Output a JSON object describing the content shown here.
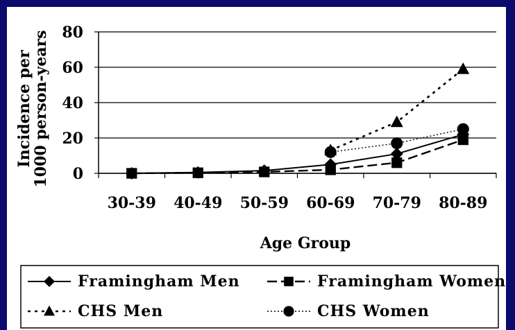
{
  "chart_data": {
    "type": "line",
    "categories": [
      "30-39",
      "40-49",
      "50-59",
      "60-69",
      "70-79",
      "80-89"
    ],
    "xlabel": "Age Group",
    "ylabel_lines": [
      "Incidence per",
      "1000 person-years"
    ],
    "ylim": [
      0,
      80
    ],
    "yticks": [
      0,
      20,
      40,
      60,
      80
    ],
    "grid": "horizontal",
    "legend_placement": "bottom",
    "series": [
      {
        "name": "Framingham Men",
        "values": [
          0,
          0.5,
          1.5,
          5,
          11,
          22
        ],
        "marker": "diamond",
        "dash": "solid",
        "color": "#000000"
      },
      {
        "name": "Framingham Women",
        "values": [
          0,
          0.3,
          0.8,
          2,
          6,
          19
        ],
        "marker": "square",
        "dash": "long-dash",
        "color": "#000000"
      },
      {
        "name": "CHS Men",
        "values": [
          null,
          null,
          null,
          13,
          29,
          59
        ],
        "marker": "triangle",
        "dash": "dotted",
        "color": "#000000"
      },
      {
        "name": "CHS Women",
        "values": [
          null,
          null,
          null,
          12,
          17,
          25
        ],
        "marker": "circle",
        "dash": "dash-dot",
        "color": "#000000"
      }
    ]
  }
}
